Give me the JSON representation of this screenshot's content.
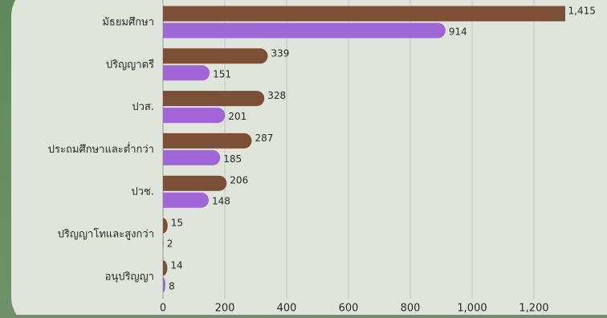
{
  "chart_data": {
    "type": "barh",
    "categories": [
      "มัธยมศึกษา",
      "ปริญญาตรี",
      "ปวส.",
      "ประถมศึกษาและต่ำกว่า",
      "ปวช.",
      "ปริญญาโทและสูงกว่า",
      "อนุปริญญา"
    ],
    "series": [
      {
        "color": "#7b4f35",
        "values": [
          1415,
          339,
          328,
          287,
          206,
          15,
          14
        ],
        "value_labels": [
          "1,415",
          "339",
          "328",
          "287",
          "206",
          "15",
          "14"
        ]
      },
      {
        "color": "#a066d8",
        "values": [
          914,
          151,
          201,
          185,
          148,
          2,
          8
        ]
      }
    ],
    "xlim": [
      0,
      1300
    ],
    "xticks": [
      0,
      200,
      400,
      600,
      800,
      {
        "value": 1000,
        "label": "1,000"
      },
      {
        "value": 1200,
        "label": "1,200"
      }
    ],
    "grid": true
  }
}
